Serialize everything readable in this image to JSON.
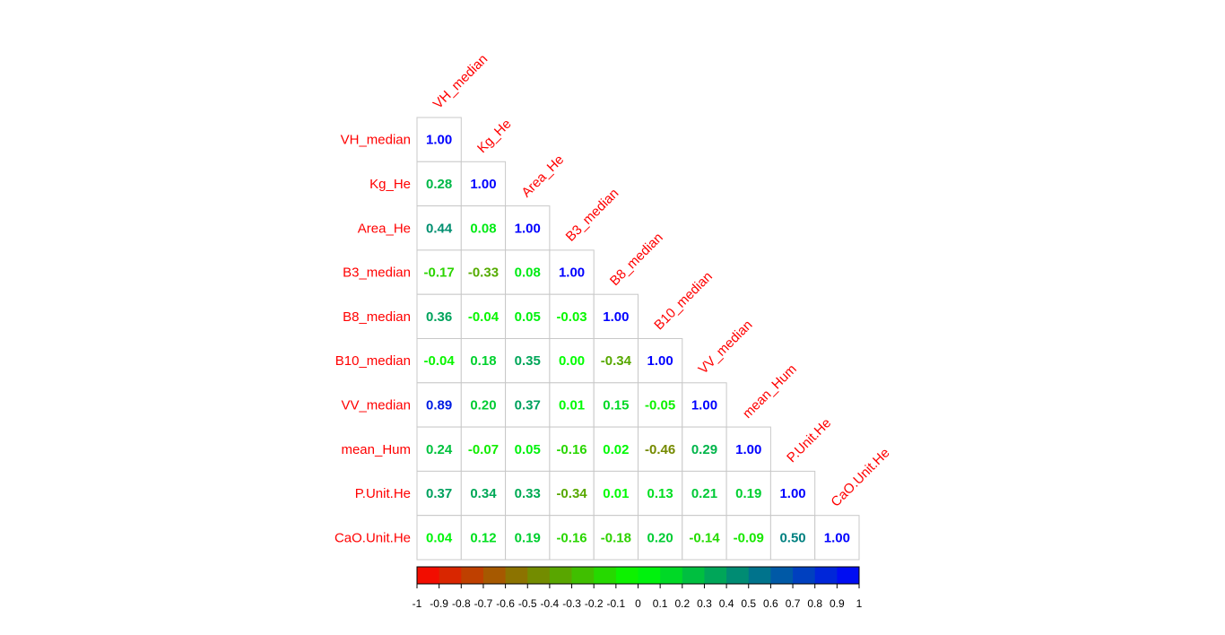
{
  "chart_data": {
    "type": "heatmap",
    "variables": [
      "VH_median",
      "Kg_He",
      "Area_He",
      "B3_median",
      "B8_median",
      "B10_median",
      "VV_median",
      "mean_Hum",
      "P.Unit.He",
      "CaO.Unit.He"
    ],
    "matrix": [
      [
        1.0
      ],
      [
        0.28,
        1.0
      ],
      [
        0.44,
        0.08,
        1.0
      ],
      [
        -0.17,
        -0.33,
        0.08,
        1.0
      ],
      [
        0.36,
        -0.04,
        0.05,
        -0.03,
        1.0
      ],
      [
        -0.04,
        0.18,
        0.35,
        0.0,
        -0.34,
        1.0
      ],
      [
        0.89,
        0.2,
        0.37,
        0.01,
        0.15,
        -0.05,
        1.0
      ],
      [
        0.24,
        -0.07,
        0.05,
        -0.16,
        0.02,
        -0.46,
        0.29,
        1.0
      ],
      [
        0.37,
        0.34,
        0.33,
        -0.34,
        0.01,
        0.13,
        0.21,
        0.19,
        1.0
      ],
      [
        0.04,
        0.12,
        0.19,
        -0.16,
        -0.18,
        0.2,
        -0.14,
        -0.09,
        0.5,
        1.0
      ]
    ],
    "matrix_shape": "lower-triangular",
    "number_format": "0.00",
    "color_scale": {
      "range": [
        -1,
        1
      ],
      "colors": [
        "#ff0000",
        "#00ff00",
        "#0000ff"
      ],
      "ticks": [
        "-1",
        "-0.9",
        "-0.8",
        "-0.7",
        "-0.6",
        "-0.5",
        "-0.4",
        "-0.3",
        "-0.2",
        "-0.1",
        "0",
        "0.1",
        "0.2",
        "0.3",
        "0.4",
        "0.5",
        "0.6",
        "0.7",
        "0.8",
        "0.9",
        "1"
      ]
    },
    "label_color": "#ff0000",
    "legend_placement": "bottom"
  }
}
